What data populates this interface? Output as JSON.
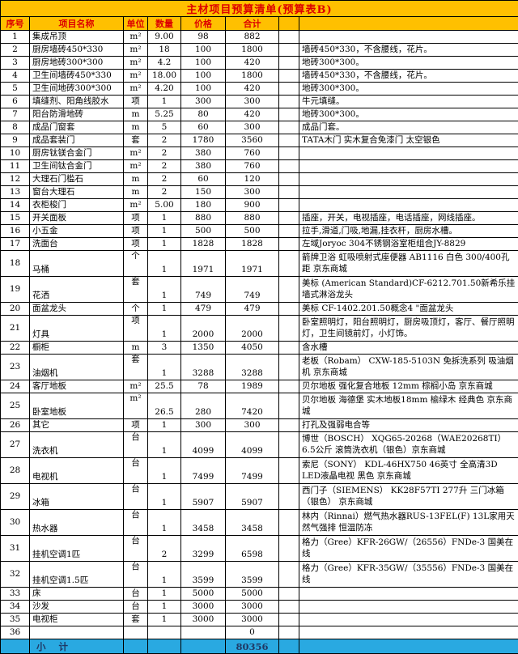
{
  "title": "主材项目预算清单(预算表B)",
  "columns": [
    "序号",
    "项目名称",
    "单位",
    "数量",
    "价格",
    "合计",
    "",
    ""
  ],
  "rows": [
    {
      "no": "1",
      "name": "集成吊顶",
      "unit": "m²",
      "qty": "9.00",
      "price": "98",
      "total": "882",
      "remark": "",
      "tall": false
    },
    {
      "no": "2",
      "name": "厨房墙砖450*330",
      "unit": "m²",
      "qty": "18",
      "price": "100",
      "total": "1800",
      "remark": "墙砖450*330，不含腰线，花片。",
      "tall": false
    },
    {
      "no": "3",
      "name": "厨房地砖300*300",
      "unit": "m²",
      "qty": "4.2",
      "price": "100",
      "total": "420",
      "remark": "地砖300*300。",
      "tall": false
    },
    {
      "no": "4",
      "name": "卫生间墙砖450*330",
      "unit": "m²",
      "qty": "18.00",
      "price": "100",
      "total": "1800",
      "remark": "墙砖450*330，不含腰线，花片。",
      "tall": false
    },
    {
      "no": "5",
      "name": "卫生间地砖300*300",
      "unit": "m²",
      "qty": "4.20",
      "price": "100",
      "total": "420",
      "remark": "地砖300*300。",
      "tall": false
    },
    {
      "no": "6",
      "name": "填缝剂、阳角线胶水",
      "unit": "项",
      "qty": "1",
      "price": "300",
      "total": "300",
      "remark": "牛元填缝。",
      "tall": false
    },
    {
      "no": "7",
      "name": "阳台防滑地砖",
      "unit": "m",
      "qty": "5.25",
      "price": "80",
      "total": "420",
      "remark": "地砖300*300。",
      "tall": false
    },
    {
      "no": "8",
      "name": "成品门窗套",
      "unit": "m",
      "qty": "5",
      "price": "60",
      "total": "300",
      "remark": "成品门套。",
      "tall": false
    },
    {
      "no": "9",
      "name": "成品套装门",
      "unit": "套",
      "qty": "2",
      "price": "1780",
      "total": "3560",
      "remark": "TATA木门 实木复合免漆门 太空银色",
      "tall": false
    },
    {
      "no": "10",
      "name": "厨房钛镁合金门",
      "unit": "m²",
      "qty": "2",
      "price": "380",
      "total": "760",
      "remark": "",
      "tall": false
    },
    {
      "no": "11",
      "name": "卫生间钛合金门",
      "unit": "m²",
      "qty": "2",
      "price": "380",
      "total": "760",
      "remark": "",
      "tall": false
    },
    {
      "no": "12",
      "name": "大理石门槛石",
      "unit": "m",
      "qty": "2",
      "price": "60",
      "total": "120",
      "remark": "",
      "tall": false
    },
    {
      "no": "13",
      "name": "窗台大理石",
      "unit": "m",
      "qty": "2",
      "price": "150",
      "total": "300",
      "remark": "",
      "tall": false
    },
    {
      "no": "14",
      "name": "衣柜梭门",
      "unit": "m²",
      "qty": "5.00",
      "price": "180",
      "total": "900",
      "remark": "",
      "tall": false
    },
    {
      "no": "15",
      "name": "开关面板",
      "unit": "项",
      "qty": "1",
      "price": "880",
      "total": "880",
      "remark": "插座，开关，电视插座，电话插座，网线插座。",
      "tall": false
    },
    {
      "no": "16",
      "name": "小五金",
      "unit": "项",
      "qty": "1",
      "price": "500",
      "total": "500",
      "remark": "拉手,滑道,门吸,地漏,挂衣杆，厨房水槽。",
      "tall": false
    },
    {
      "no": "17",
      "name": "洗面台",
      "unit": "项",
      "qty": "1",
      "price": "1828",
      "total": "1828",
      "remark": "左域Joryoc 304不锈钢浴室柜组合JY-8829",
      "tall": false
    },
    {
      "no": "18",
      "name": "马桶",
      "unit": "个",
      "qty": "1",
      "price": "1971",
      "total": "1971",
      "remark": "箭牌卫浴 虹吸喷射式座便器 AB1116  白色 300/400孔距 京东商城",
      "tall": true
    },
    {
      "no": "19",
      "name": "花洒",
      "unit": "套",
      "qty": "1",
      "price": "749",
      "total": "749",
      "remark": "美标 (American Standard)CF-6212.701.50新希乐挂墙式淋浴龙头",
      "tall": true
    },
    {
      "no": "20",
      "name": "面盆龙头",
      "unit": "个",
      "qty": "1",
      "price": "479",
      "total": "479",
      "remark": "美标 CF-1402.201.50概念4 \"面盆龙头",
      "tall": false
    },
    {
      "no": "21",
      "name": "灯具",
      "unit": "项",
      "qty": "1",
      "price": "2000",
      "total": "2000",
      "remark": "卧室照明灯，阳台照明灯，厨房吸顶灯，客厅、餐厅照明灯，卫生间镜前灯，小灯饰。",
      "tall": true
    },
    {
      "no": "22",
      "name": "橱柜",
      "unit": "m",
      "qty": "3",
      "price": "1350",
      "total": "4050",
      "remark": "含水槽",
      "tall": false
    },
    {
      "no": "23",
      "name": "油烟机",
      "unit": "套",
      "qty": "1",
      "price": "3288",
      "total": "3288",
      "remark": "老板（Robam） CXW-185-5103N 免拆洗系列 吸油烟机  京东商城",
      "tall": true
    },
    {
      "no": "24",
      "name": "客厅地板",
      "unit": "m²",
      "qty": "25.5",
      "price": "78",
      "total": "1989",
      "remark": "贝尔地板 强化复合地板 12mm 棕榈小岛 京东商城",
      "tall": false
    },
    {
      "no": "25",
      "name": "卧室地板",
      "unit": "m²",
      "qty": "26.5",
      "price": "280",
      "total": "7420",
      "remark": "贝尔地板 海德堡 实木地板18mm 榆绿木 经典色 京东商城",
      "tall": true
    },
    {
      "no": "26",
      "name": "其它",
      "unit": "项",
      "qty": "1",
      "price": "300",
      "total": "300",
      "remark": "打孔及强弱电合等",
      "tall": false
    },
    {
      "no": "27",
      "name": "洗衣机",
      "unit": "台",
      "qty": "1",
      "price": "4099",
      "total": "4099",
      "remark": "博世（BOSCH） XQG65-20268（WAE20268TI） 6.5公斤 滚筒洗衣机（银色）京东商城",
      "tall": true
    },
    {
      "no": "28",
      "name": "电视机",
      "unit": "台",
      "qty": "1",
      "price": "7499",
      "total": "7499",
      "remark": "索尼（SONY） KDL-46HX750 46英寸 全高清3D LED液晶电视 黑色  京东商城",
      "tall": true
    },
    {
      "no": "29",
      "name": "冰箱",
      "unit": "台",
      "qty": "1",
      "price": "5907",
      "total": "5907",
      "remark": "西门子（SIEMENS） KK28F57TI 277升 三门冰箱（银色） 京东商城",
      "tall": true
    },
    {
      "no": "30",
      "name": "热水器",
      "unit": "台",
      "qty": "1",
      "price": "3458",
      "total": "3458",
      "remark": "林内（Rinnai）燃气热水器RUS-13FEL(F) 13L家用天然气强排 恒温防冻",
      "tall": true
    },
    {
      "no": "31",
      "name": "挂机空调1匹",
      "unit": "台",
      "qty": "2",
      "price": "3299",
      "total": "6598",
      "remark": "格力（Gree）KFR-26GW/（26556）FNDe-3  国美在线",
      "tall": true
    },
    {
      "no": "32",
      "name": "挂机空调1.5匹",
      "unit": "台",
      "qty": "1",
      "price": "3599",
      "total": "3599",
      "remark": "格力（Gree）KFR-35GW/（35556）FNDe-3  国美在线",
      "tall": true
    },
    {
      "no": "33",
      "name": "床",
      "unit": "台",
      "qty": "1",
      "price": "5000",
      "total": "5000",
      "remark": "",
      "tall": false
    },
    {
      "no": "34",
      "name": "沙发",
      "unit": "台",
      "qty": "1",
      "price": "3000",
      "total": "3000",
      "remark": "",
      "tall": false
    },
    {
      "no": "35",
      "name": "电视柜",
      "unit": "套",
      "qty": "1",
      "price": "3000",
      "total": "3000",
      "remark": "",
      "tall": false
    },
    {
      "no": "36",
      "name": "",
      "unit": "",
      "qty": "",
      "price": "",
      "total": "0",
      "remark": "",
      "tall": false
    }
  ],
  "subtotal": {
    "label": "小    计",
    "value": "80356"
  },
  "colors": {
    "header_bg": "#FFC000",
    "header_text": "#DD0000",
    "grid": "#000000",
    "subtotal_bg": "#29A9E1",
    "subtotal_text": "#1F3864",
    "body_text": "#000000"
  }
}
